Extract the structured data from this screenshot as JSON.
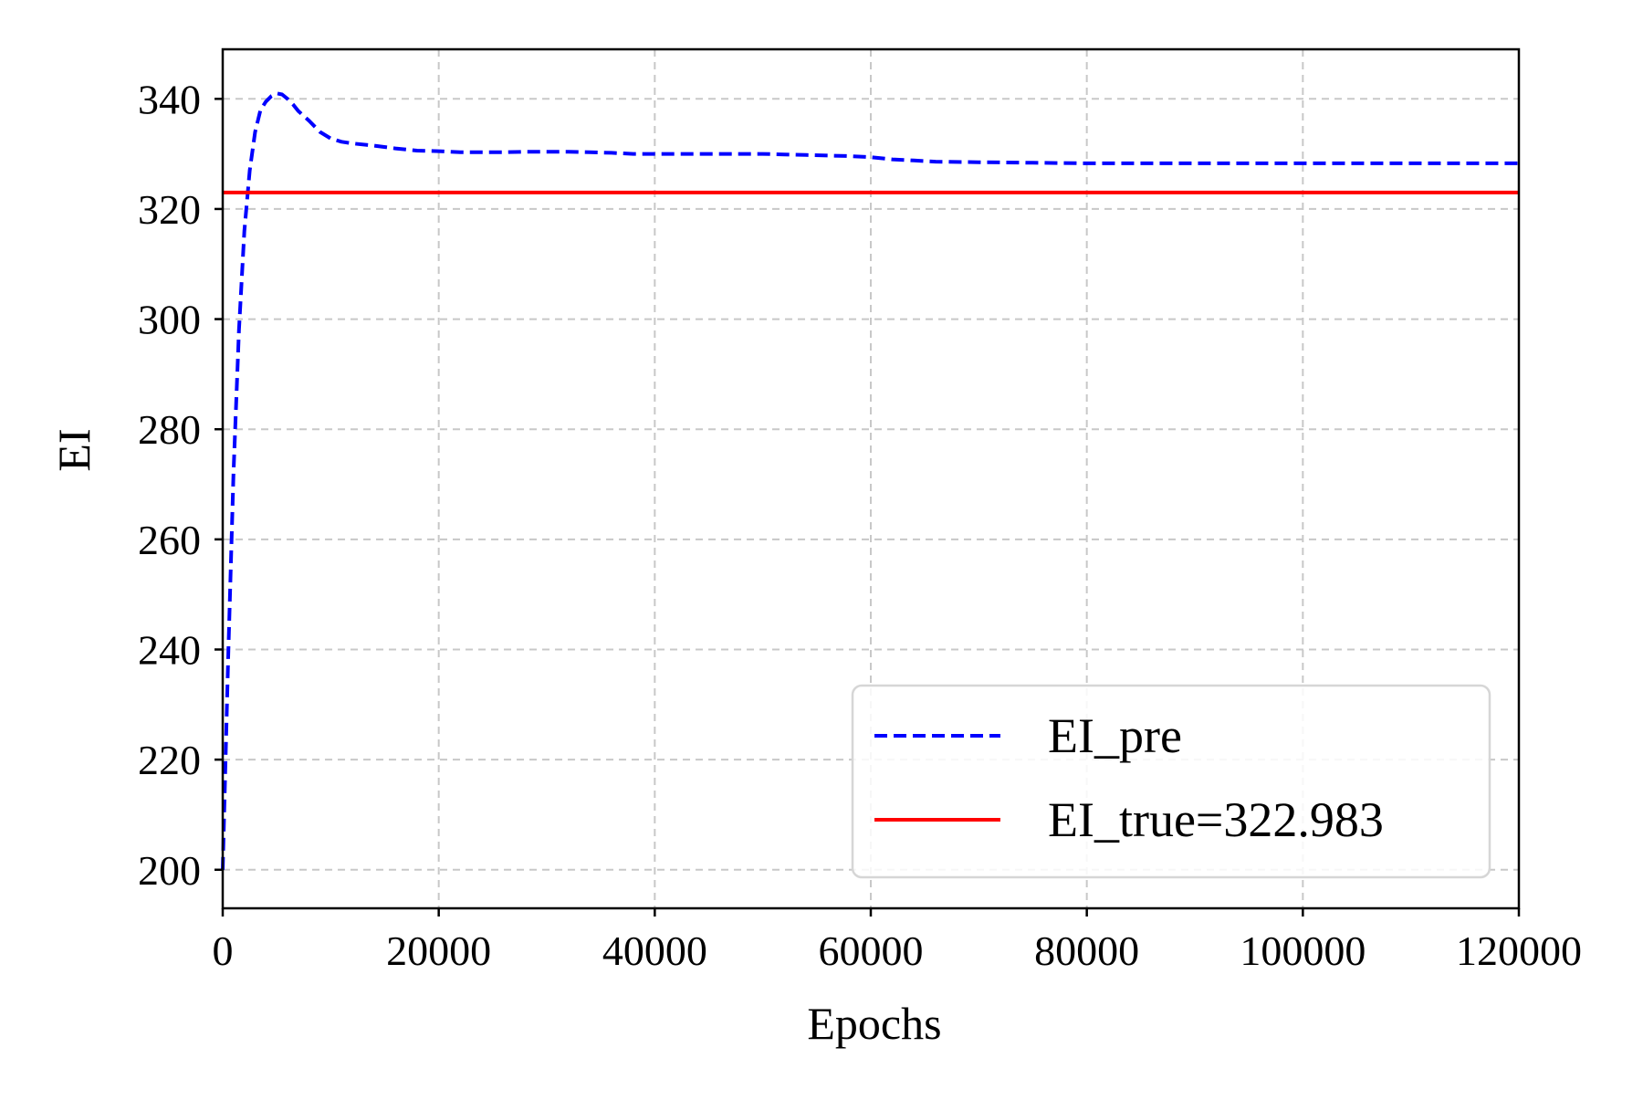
{
  "chart_data": {
    "type": "line",
    "title": "",
    "xlabel": "Epochs",
    "ylabel": "EI",
    "xlim": [
      0,
      120000
    ],
    "ylim": [
      193,
      349
    ],
    "xticks": [
      0,
      20000,
      40000,
      60000,
      80000,
      100000,
      120000
    ],
    "xtick_labels": [
      "0",
      "20000",
      "40000",
      "60000",
      "80000",
      "100000",
      "120000"
    ],
    "yticks": [
      200,
      220,
      240,
      260,
      280,
      300,
      320,
      340
    ],
    "ytick_labels": [
      "200",
      "220",
      "240",
      "260",
      "280",
      "300",
      "320",
      "340"
    ],
    "grid": true,
    "legend_position": "lower-right",
    "series": [
      {
        "name": "EI_pre",
        "style": "dashed",
        "color": "#0000ff",
        "x": [
          0,
          500,
          1000,
          1500,
          2000,
          2500,
          3000,
          3500,
          4000,
          4500,
          5000,
          5500,
          6000,
          6500,
          7000,
          8000,
          9000,
          10000,
          11000,
          12000,
          14000,
          16000,
          18000,
          20000,
          22000,
          24000,
          26000,
          28000,
          30000,
          32000,
          34000,
          36000,
          38000,
          40000,
          42000,
          44000,
          46000,
          48000,
          50000,
          52000,
          54000,
          56000,
          58000,
          60000,
          62000,
          64000,
          66000,
          70000,
          75000,
          80000,
          90000,
          100000,
          110000,
          120000
        ],
        "y": [
          200,
          238,
          272,
          298,
          316,
          327,
          334,
          338,
          339.5,
          340.5,
          341,
          340.8,
          340,
          339,
          337.8,
          336,
          334,
          332.8,
          332.2,
          331.9,
          331.5,
          331,
          330.6,
          330.5,
          330.3,
          330.3,
          330.3,
          330.4,
          330.4,
          330.4,
          330.3,
          330.2,
          330,
          330,
          330,
          330,
          330,
          330,
          330,
          329.9,
          329.8,
          329.7,
          329.6,
          329.4,
          329,
          328.8,
          328.6,
          328.5,
          328.4,
          328.3,
          328.3,
          328.3,
          328.3,
          328.3
        ]
      },
      {
        "name": "EI_true=322.983",
        "style": "solid",
        "color": "#ff0000",
        "x": [
          0,
          120000
        ],
        "y": [
          322.983,
          322.983
        ]
      }
    ]
  }
}
